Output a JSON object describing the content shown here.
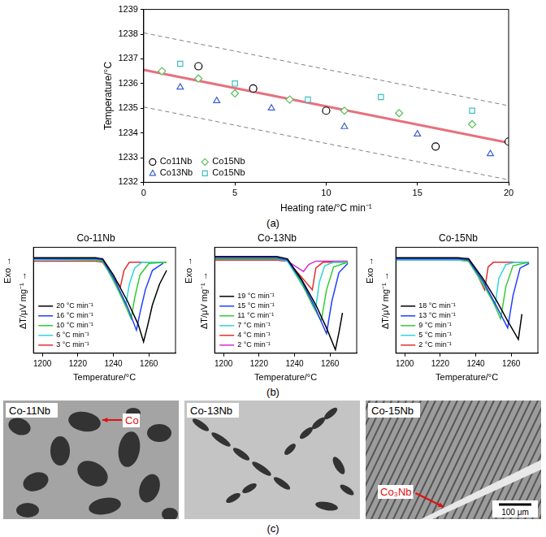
{
  "chart_data": [
    {
      "type": "scatter",
      "x_label": "Heating rate/°C min⁻¹",
      "y_label": "Temperature/°C",
      "xlim": [
        0,
        20
      ],
      "xticks": [
        0,
        5,
        10,
        15,
        20
      ],
      "ylim": [
        1232,
        1239
      ],
      "yticks": [
        1232,
        1233,
        1234,
        1235,
        1236,
        1237,
        1238,
        1239
      ],
      "grid": false,
      "legend": "lower left",
      "series": [
        {
          "name": "Co11Nb",
          "color": "#000000",
          "marker": "circle",
          "x": [
            3,
            6,
            10,
            16,
            20
          ],
          "values": [
            1236.7,
            1235.8,
            1234.9,
            1233.45,
            1233.65
          ]
        },
        {
          "name": "Co13Nb",
          "color": "#3d5fd0",
          "marker": "triangle",
          "x": [
            2,
            4,
            7,
            11,
            15,
            19
          ],
          "values": [
            1235.85,
            1235.3,
            1235.0,
            1234.25,
            1233.95,
            1233.15
          ]
        },
        {
          "name": "Co15Nb",
          "color": "#5cbf5c",
          "marker": "diamond",
          "x": [
            1,
            3,
            5,
            8,
            11,
            14,
            18
          ],
          "values": [
            1236.5,
            1236.2,
            1235.6,
            1235.35,
            1234.9,
            1234.8,
            1234.35
          ]
        },
        {
          "name": "Co15Nb",
          "color": "#3fbfbf",
          "marker": "square",
          "x": [
            2,
            5,
            9,
            13,
            18
          ],
          "values": [
            1236.8,
            1236.0,
            1235.35,
            1235.45,
            1234.9
          ]
        },
        {
          "type": "line",
          "color": "#e8707e",
          "line_style": "solid",
          "x": [
            0,
            20
          ],
          "values": [
            1236.55,
            1233.6
          ]
        },
        {
          "type": "line",
          "color": "#808080",
          "line_style": "dashed",
          "x": [
            0,
            20
          ],
          "values": [
            1238.05,
            1235.1
          ]
        },
        {
          "type": "line",
          "color": "#808080",
          "line_style": "dashed",
          "x": [
            0,
            20
          ],
          "values": [
            1235.05,
            1232.1
          ]
        }
      ]
    },
    {
      "type": "line",
      "title": "Co-11Nb",
      "x_label": "Temperature/°C",
      "y_label": "ΔT/μV mg⁻¹ →",
      "annotations": [
        "Exo →"
      ],
      "xlim": [
        1195,
        1275
      ],
      "xticks": [
        1200,
        1220,
        1240,
        1260
      ],
      "ylim": [
        -0.8,
        0.12
      ],
      "yticks": [],
      "tick_labels": "x",
      "grid": false,
      "legend": "lower left",
      "series": [
        {
          "name": "20 °C min⁻¹",
          "color": "#000000",
          "x": [
            1195,
            1230,
            1234,
            1240,
            1248,
            1254,
            1257,
            1259,
            1262,
            1266,
            1270
          ],
          "values": [
            0.03,
            0.03,
            0.02,
            -0.12,
            -0.35,
            -0.55,
            -0.7,
            -0.58,
            -0.38,
            -0.2,
            -0.08
          ]
        },
        {
          "name": "16 °C min⁻¹",
          "color": "#1f3fff",
          "x": [
            1195,
            1230,
            1234,
            1240,
            1248,
            1253,
            1255,
            1258,
            1262,
            1268
          ],
          "values": [
            0.02,
            0.02,
            0.01,
            -0.14,
            -0.4,
            -0.6,
            -0.45,
            -0.25,
            -0.08,
            -0.02
          ]
        },
        {
          "name": "10 °C min⁻¹",
          "color": "#33cc33",
          "x": [
            1195,
            1230,
            1234,
            1240,
            1246,
            1250,
            1252,
            1255,
            1260,
            1270
          ],
          "values": [
            0.02,
            0.01,
            0,
            -0.16,
            -0.36,
            -0.5,
            -0.32,
            -0.12,
            -0.02,
            -0.01
          ]
        },
        {
          "name": "6 °C min⁻¹",
          "color": "#2fd6d6",
          "x": [
            1195,
            1230,
            1234,
            1240,
            1247,
            1249,
            1252,
            1256,
            1270
          ],
          "values": [
            0.01,
            0.01,
            0,
            -0.17,
            -0.38,
            -0.2,
            -0.06,
            -0.01,
            -0.01
          ]
        },
        {
          "name": "3 °C min⁻¹",
          "color": "#e03030",
          "x": [
            1195,
            1230,
            1234,
            1240,
            1244,
            1246,
            1249,
            1270
          ],
          "values": [
            0,
            0,
            -0.01,
            -0.15,
            -0.22,
            -0.08,
            -0.01,
            -0.01
          ]
        }
      ]
    },
    {
      "type": "line",
      "title": "Co-13Nb",
      "x_label": "Temperature/°C",
      "y_label": "ΔT/μV mg⁻¹ →",
      "annotations": [
        "Exo →"
      ],
      "xlim": [
        1195,
        1275
      ],
      "xticks": [
        1200,
        1220,
        1240,
        1260
      ],
      "ylim": [
        -0.8,
        0.12
      ],
      "yticks": [],
      "tick_labels": "x",
      "grid": false,
      "legend": "lower left",
      "series": [
        {
          "name": "19 °C min⁻¹",
          "color": "#000000",
          "x": [
            1195,
            1230,
            1236,
            1244,
            1252,
            1258,
            1263,
            1265,
            1267
          ],
          "values": [
            0.04,
            0.04,
            0.02,
            -0.16,
            -0.38,
            -0.58,
            -0.77,
            -0.62,
            -0.45
          ]
        },
        {
          "name": "15 °C min⁻¹",
          "color": "#1f3fff",
          "x": [
            1195,
            1230,
            1236,
            1244,
            1252,
            1258,
            1261,
            1265,
            1270
          ],
          "values": [
            0.03,
            0.03,
            0.01,
            -0.17,
            -0.42,
            -0.63,
            -0.35,
            -0.1,
            -0.02
          ]
        },
        {
          "name": "11 °C min⁻¹",
          "color": "#33cc33",
          "x": [
            1195,
            1230,
            1236,
            1244,
            1250,
            1255,
            1258,
            1262,
            1270
          ],
          "values": [
            0.02,
            0.02,
            0.01,
            -0.19,
            -0.38,
            -0.52,
            -0.25,
            -0.05,
            -0.01
          ]
        },
        {
          "name": "7 °C min⁻¹",
          "color": "#2fd6d6",
          "x": [
            1195,
            1230,
            1236,
            1244,
            1252,
            1254,
            1257,
            1262,
            1270
          ],
          "values": [
            0.02,
            0.02,
            0,
            -0.2,
            -0.4,
            -0.18,
            -0.04,
            -0.01,
            -0.01
          ]
        },
        {
          "name": "4 °C min⁻¹",
          "color": "#e03030",
          "x": [
            1195,
            1230,
            1236,
            1244,
            1250,
            1252,
            1256,
            1270
          ],
          "values": [
            0.01,
            0.01,
            0,
            -0.14,
            -0.25,
            -0.06,
            -0.01,
            -0.01
          ]
        },
        {
          "name": "2 °C min⁻¹",
          "color": "#d030d0",
          "x": [
            1195,
            1230,
            1236,
            1242,
            1245,
            1248,
            1252,
            1270
          ],
          "values": [
            0.01,
            0.01,
            0,
            -0.06,
            -0.09,
            -0.03,
            0,
            0
          ]
        }
      ]
    },
    {
      "type": "line",
      "title": "Co-15Nb",
      "x_label": "Temperature/°C",
      "y_label": "ΔT/μV mg⁻¹ →",
      "annotations": [
        "Exo →"
      ],
      "xlim": [
        1195,
        1275
      ],
      "xticks": [
        1200,
        1220,
        1240,
        1260
      ],
      "ylim": [
        -0.8,
        0.12
      ],
      "yticks": [],
      "tick_labels": "x",
      "grid": false,
      "legend": "lower left",
      "series": [
        {
          "name": "18 °C min⁻¹",
          "color": "#000000",
          "x": [
            1195,
            1230,
            1236,
            1244,
            1252,
            1258,
            1264,
            1266
          ],
          "values": [
            0.03,
            0.03,
            0.02,
            -0.15,
            -0.35,
            -0.52,
            -0.68,
            -0.46
          ]
        },
        {
          "name": "13 °C min⁻¹",
          "color": "#1f3fff",
          "x": [
            1195,
            1230,
            1236,
            1244,
            1252,
            1258,
            1261,
            1265,
            1270
          ],
          "values": [
            0.02,
            0.02,
            0.01,
            -0.17,
            -0.4,
            -0.58,
            -0.3,
            -0.06,
            -0.02
          ]
        },
        {
          "name": "9 °C min⁻¹",
          "color": "#33cc33",
          "x": [
            1195,
            1230,
            1236,
            1244,
            1250,
            1254,
            1257,
            1261,
            1270
          ],
          "values": [
            0.02,
            0.02,
            0,
            -0.19,
            -0.36,
            -0.5,
            -0.22,
            -0.04,
            -0.01
          ]
        },
        {
          "name": "5 °C min⁻¹",
          "color": "#2fd6d6",
          "x": [
            1195,
            1230,
            1236,
            1244,
            1251,
            1253,
            1257,
            1262,
            1270
          ],
          "values": [
            0.01,
            0.01,
            0,
            -0.2,
            -0.38,
            -0.15,
            -0.03,
            -0.01,
            -0.01
          ]
        },
        {
          "name": "2 °C min⁻¹",
          "color": "#e03030",
          "x": [
            1195,
            1230,
            1236,
            1241,
            1245,
            1247,
            1250,
            1270
          ],
          "values": [
            0.01,
            0.01,
            0,
            -0.12,
            -0.25,
            -0.05,
            -0.01,
            -0.01
          ]
        }
      ]
    }
  ],
  "panel_labels": [
    "(a)",
    "(b)",
    "(c)"
  ],
  "micrographs": [
    {
      "title": "Co-11Nb",
      "annotations": [
        "Co"
      ]
    },
    {
      "title": "Co-13Nb"
    },
    {
      "title": "Co-15Nb",
      "annotations": [
        "Co₃Nb"
      ],
      "scale_bar": "100 μm"
    }
  ]
}
